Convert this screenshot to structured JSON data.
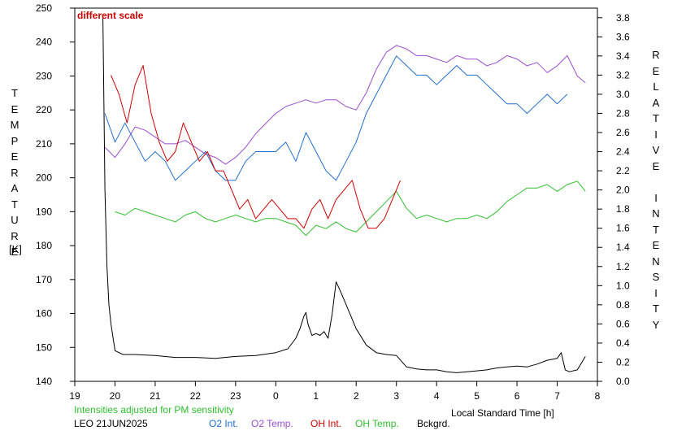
{
  "chart_data": {
    "type": "line",
    "annotation": "different scale",
    "xlabel": "Local Standard Time [h]",
    "x_ticks": [
      "19",
      "20",
      "21",
      "22",
      "23",
      "0",
      "1",
      "2",
      "3",
      "4",
      "5",
      "6",
      "7",
      "8"
    ],
    "x_range": [
      19,
      32
    ],
    "ylabel_left": "TEMPERATURE",
    "ylabel_left_unit": "[K]",
    "ylim_left": [
      140,
      250
    ],
    "y_ticks_left": [
      "140",
      "150",
      "160",
      "170",
      "180",
      "190",
      "200",
      "210",
      "220",
      "230",
      "240",
      "250"
    ],
    "ylabel_right": "RELATIVE INTENSITY",
    "ylim_right": [
      0,
      3.9
    ],
    "y_ticks_right": [
      "0.0",
      "0.2",
      "0.4",
      "0.6",
      "0.8",
      "1.0",
      "1.2",
      "1.4",
      "1.6",
      "1.8",
      "2.0",
      "2.2",
      "2.4",
      "2.6",
      "2.8",
      "3.0",
      "3.2",
      "3.4",
      "3.6",
      "3.8"
    ],
    "footnote": "Intensities adjusted for PM sensitivity",
    "station": "LEO 21JUN2025",
    "legend": [
      "O2 Int.",
      "O2 Temp.",
      "OH Int.",
      "OH Temp.",
      "Bckgrd."
    ],
    "colors": {
      "o2_int": "#1f6fd0",
      "o2_temp": "#9a4fd0",
      "oh_int": "#d00000",
      "oh_temp": "#30c030",
      "bckgrd": "#000000",
      "footnote": "#30c030"
    },
    "series": [
      {
        "name": "O2 Temp.",
        "axis": "left",
        "x": [
          19.75,
          20.0,
          20.25,
          20.5,
          20.75,
          21.0,
          21.25,
          21.5,
          21.75,
          22.0,
          22.25,
          22.5,
          22.75,
          23.0,
          23.25,
          23.5,
          23.75,
          24.0,
          24.25,
          24.5,
          24.75,
          25.0,
          25.25,
          25.5,
          25.75,
          26.0,
          26.25,
          26.5,
          26.75,
          27.0,
          27.25,
          27.5,
          27.75,
          28.0,
          28.25,
          28.5,
          28.75,
          29.0,
          29.25,
          29.5,
          29.75,
          30.0,
          30.25,
          30.5,
          30.75,
          31.0,
          31.25,
          31.5,
          31.7
        ],
        "y": [
          209,
          206,
          210,
          215,
          214,
          212,
          210,
          210,
          211,
          209,
          207,
          206,
          204,
          206,
          209,
          213,
          216,
          219,
          221,
          222,
          223,
          222,
          223,
          223,
          221,
          220,
          225,
          232,
          237,
          239,
          238,
          236,
          236,
          235,
          234,
          236,
          235,
          235,
          233,
          234,
          236,
          235,
          233,
          234,
          231,
          233,
          236,
          230,
          228
        ]
      },
      {
        "name": "O2 Int.",
        "axis": "right",
        "x": [
          19.75,
          20.0,
          20.25,
          20.5,
          20.75,
          21.0,
          21.25,
          21.5,
          21.75,
          22.0,
          22.25,
          22.5,
          22.75,
          23.0,
          23.25,
          23.5,
          23.75,
          24.0,
          24.25,
          24.5,
          24.75,
          25.0,
          25.25,
          25.5,
          25.75,
          26.0,
          26.25,
          26.5,
          26.75,
          27.0,
          27.25,
          27.5,
          27.75,
          28.0,
          28.25,
          28.5,
          28.75,
          29.0,
          29.25,
          29.5,
          29.75,
          30.0,
          30.25,
          30.5,
          30.75,
          31.0,
          31.25
        ],
        "y": [
          2.8,
          2.5,
          2.7,
          2.5,
          2.3,
          2.4,
          2.3,
          2.1,
          2.2,
          2.3,
          2.4,
          2.2,
          2.1,
          2.1,
          2.3,
          2.4,
          2.4,
          2.4,
          2.5,
          2.3,
          2.6,
          2.4,
          2.2,
          2.1,
          2.3,
          2.5,
          2.8,
          3.0,
          3.2,
          3.4,
          3.3,
          3.2,
          3.2,
          3.1,
          3.2,
          3.3,
          3.2,
          3.2,
          3.1,
          3.0,
          2.9,
          2.9,
          2.8,
          2.9,
          3.0,
          2.9,
          3.0
        ]
      },
      {
        "name": "OH Temp.",
        "axis": "left",
        "x": [
          20.0,
          20.25,
          20.5,
          20.75,
          21.0,
          21.25,
          21.5,
          21.75,
          22.0,
          22.25,
          22.5,
          22.75,
          23.0,
          23.25,
          23.5,
          23.75,
          24.0,
          24.25,
          24.5,
          24.75,
          25.0,
          25.25,
          25.5,
          25.75,
          26.0,
          26.25,
          26.5,
          26.75,
          27.0,
          27.25,
          27.5,
          27.75,
          28.0,
          28.25,
          28.5,
          28.75,
          29.0,
          29.25,
          29.5,
          29.75,
          30.0,
          30.25,
          30.5,
          30.75,
          31.0,
          31.25,
          31.5,
          31.7
        ],
        "y": [
          190,
          189,
          191,
          190,
          189,
          188,
          187,
          189,
          190,
          188,
          187,
          188,
          189,
          188,
          187,
          188,
          188,
          187,
          186,
          183,
          186,
          185,
          187,
          185,
          184,
          187,
          190,
          193,
          196,
          191,
          188,
          189,
          188,
          187,
          188,
          188,
          189,
          188,
          190,
          193,
          195,
          197,
          197,
          198,
          196,
          198,
          199,
          196
        ]
      },
      {
        "name": "OH Int.",
        "axis": "right",
        "x": [
          19.9,
          20.1,
          20.3,
          20.5,
          20.7,
          20.9,
          21.1,
          21.3,
          21.5,
          21.7,
          21.9,
          22.1,
          22.3,
          22.5,
          22.7,
          22.9,
          23.1,
          23.3,
          23.5,
          23.7,
          23.9,
          24.1,
          24.3,
          24.5,
          24.7,
          24.9,
          25.1,
          25.3,
          25.5,
          25.7,
          25.9,
          26.1,
          26.3,
          26.5,
          26.7,
          26.9,
          27.1
        ],
        "y": [
          3.2,
          3.0,
          2.7,
          3.1,
          3.3,
          2.8,
          2.5,
          2.3,
          2.4,
          2.7,
          2.5,
          2.3,
          2.4,
          2.2,
          2.2,
          2.0,
          1.8,
          1.9,
          1.7,
          1.8,
          1.9,
          1.8,
          1.7,
          1.7,
          1.6,
          1.8,
          1.9,
          1.7,
          1.9,
          2.0,
          2.1,
          1.8,
          1.6,
          1.6,
          1.7,
          1.9,
          2.1
        ]
      },
      {
        "name": "Bckgrd.",
        "axis": "right",
        "x": [
          19.7,
          19.75,
          19.8,
          19.85,
          19.9,
          20.0,
          20.2,
          20.5,
          21.0,
          21.5,
          22.0,
          22.5,
          23.0,
          23.5,
          24.0,
          24.3,
          24.5,
          24.6,
          24.7,
          24.75,
          24.8,
          24.9,
          25.0,
          25.1,
          25.2,
          25.3,
          25.4,
          25.5,
          25.6,
          25.75,
          26.0,
          26.25,
          26.5,
          26.75,
          27.0,
          27.25,
          27.5,
          27.75,
          28.0,
          28.25,
          28.5,
          28.75,
          29.0,
          29.25,
          29.5,
          29.75,
          30.0,
          30.25,
          30.5,
          30.75,
          31.0,
          31.1,
          31.2,
          31.3,
          31.5,
          31.7
        ],
        "y": [
          3.8,
          2.0,
          1.2,
          0.8,
          0.6,
          0.32,
          0.28,
          0.28,
          0.27,
          0.25,
          0.25,
          0.24,
          0.26,
          0.27,
          0.3,
          0.34,
          0.45,
          0.55,
          0.68,
          0.72,
          0.6,
          0.48,
          0.5,
          0.48,
          0.52,
          0.45,
          0.7,
          1.04,
          0.95,
          0.8,
          0.55,
          0.38,
          0.3,
          0.28,
          0.27,
          0.15,
          0.13,
          0.12,
          0.12,
          0.1,
          0.09,
          0.1,
          0.11,
          0.12,
          0.14,
          0.15,
          0.16,
          0.15,
          0.18,
          0.22,
          0.24,
          0.3,
          0.12,
          0.1,
          0.12,
          0.26
        ]
      }
    ]
  }
}
